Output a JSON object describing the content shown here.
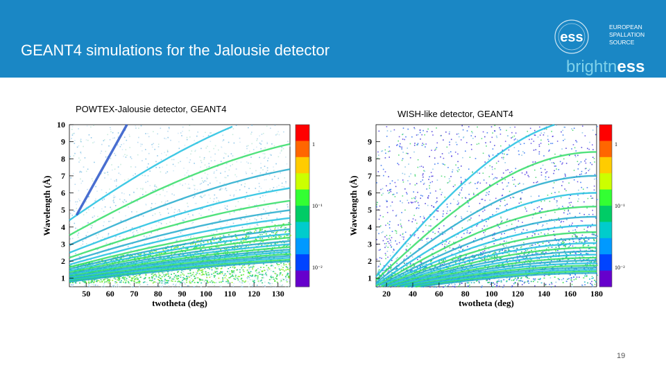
{
  "slide": {
    "title": "GEANT4 simulations for the Jalousie detector",
    "page_number": "19",
    "colors": {
      "header": "#1a87c5",
      "text_on_header": "#ffffff"
    }
  },
  "logo": {
    "mark": "ess",
    "line1": "EUROPEAN",
    "line2": "SPALLATION",
    "line3": "SOURCE",
    "sub_a": "brightn",
    "sub_b": "ess"
  },
  "chart_data": [
    {
      "type": "heatmap",
      "title": "POWTEX-Jalousie  detector, GEANT4",
      "xlabel": "twotheta (deg)",
      "ylabel": "Wavelength (Å)",
      "xlim": [
        43,
        135
      ],
      "ylim": [
        0.5,
        10
      ],
      "x_ticks": [
        "50",
        "60",
        "70",
        "80",
        "90",
        "100",
        "110",
        "120",
        "130"
      ],
      "y_ticks": [
        "1",
        "2",
        "3",
        "4",
        "5",
        "6",
        "7",
        "8",
        "9",
        "10"
      ],
      "colorbar": {
        "scale": "log",
        "ticks": [
          "1",
          "10⁻¹",
          "10⁻²"
        ]
      }
    },
    {
      "type": "heatmap",
      "title": "WISH-like  detector, GEANT4",
      "xlabel": "twotheta (deg)",
      "ylabel": "Wavelength (Å)",
      "xlim": [
        12,
        180
      ],
      "ylim": [
        0.5,
        10
      ],
      "x_ticks": [
        "20",
        "40",
        "60",
        "80",
        "100",
        "120",
        "140",
        "160",
        "180"
      ],
      "y_ticks": [
        "1",
        "2",
        "3",
        "4",
        "5",
        "6",
        "7",
        "8",
        "9"
      ],
      "colorbar": {
        "scale": "log",
        "ticks": [
          "1",
          "10⁻¹",
          "10⁻²"
        ]
      }
    }
  ]
}
